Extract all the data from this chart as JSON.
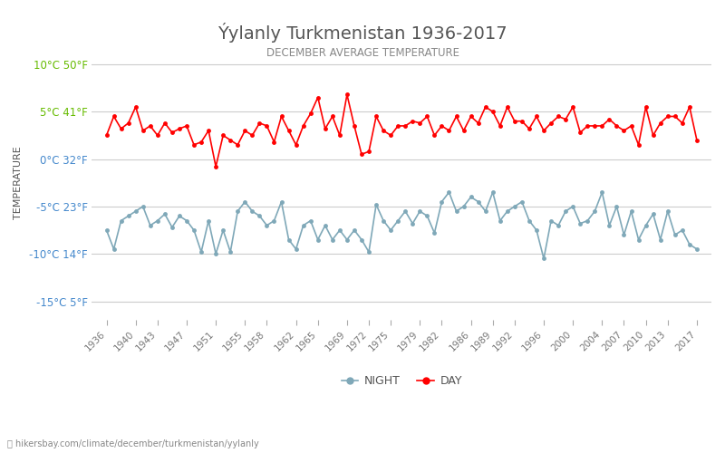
{
  "title": "Ýylanly Turkmenistan 1936-2017",
  "subtitle": "DECEMBER AVERAGE TEMPERATURE",
  "ylabel": "TEMPERATURE",
  "xlabel_url": "hikersbay.com/climate/december/turkmenistan/yylanly",
  "ylim": [
    -17,
    12
  ],
  "yticks_c": [
    -15,
    -10,
    -5,
    0,
    5,
    10
  ],
  "yticks_f": [
    5,
    14,
    23,
    32,
    41,
    50
  ],
  "years": [
    1936,
    1937,
    1938,
    1939,
    1940,
    1941,
    1942,
    1943,
    1944,
    1945,
    1946,
    1947,
    1948,
    1949,
    1950,
    1951,
    1952,
    1953,
    1954,
    1955,
    1956,
    1957,
    1958,
    1959,
    1960,
    1961,
    1962,
    1963,
    1964,
    1965,
    1966,
    1967,
    1968,
    1969,
    1970,
    1971,
    1972,
    1973,
    1974,
    1975,
    1976,
    1977,
    1978,
    1979,
    1980,
    1981,
    1982,
    1983,
    1984,
    1985,
    1986,
    1987,
    1988,
    1989,
    1990,
    1991,
    1992,
    1993,
    1994,
    1995,
    1996,
    1997,
    1998,
    1999,
    2000,
    2001,
    2002,
    2003,
    2004,
    2005,
    2006,
    2007,
    2008,
    2009,
    2010,
    2011,
    2012,
    2013,
    2014,
    2015,
    2016,
    2017
  ],
  "day_temps": [
    2.5,
    4.5,
    3.2,
    3.8,
    5.5,
    3.0,
    3.5,
    2.5,
    3.8,
    2.8,
    3.2,
    3.5,
    1.5,
    1.8,
    3.0,
    -0.8,
    2.5,
    2.0,
    1.5,
    3.0,
    2.5,
    3.8,
    3.5,
    1.8,
    4.5,
    3.0,
    1.5,
    3.5,
    4.8,
    6.5,
    3.2,
    4.5,
    2.5,
    6.8,
    3.5,
    0.5,
    0.8,
    4.5,
    3.0,
    2.5,
    3.5,
    3.5,
    4.0,
    3.8,
    4.5,
    2.5,
    3.5,
    3.0,
    4.5,
    3.0,
    4.5,
    3.8,
    5.5,
    5.0,
    3.5,
    5.5,
    4.0,
    4.0,
    3.2,
    4.5,
    3.0,
    3.8,
    4.5,
    4.2,
    5.5,
    2.8,
    3.5,
    3.5,
    3.5,
    4.2,
    3.5,
    3.0,
    3.5,
    1.5,
    5.5,
    2.5,
    3.8,
    4.5,
    4.5,
    3.8,
    5.5,
    2.0
  ],
  "night_temps": [
    -7.5,
    -9.5,
    -6.5,
    -6.0,
    -5.5,
    -5.0,
    -7.0,
    -6.5,
    -5.8,
    -7.2,
    -6.0,
    -6.5,
    -7.5,
    -9.8,
    -6.5,
    -10.0,
    -7.5,
    -9.8,
    -5.5,
    -4.5,
    -5.5,
    -6.0,
    -7.0,
    -6.5,
    -4.5,
    -8.5,
    -9.5,
    -7.0,
    -6.5,
    -8.5,
    -7.0,
    -8.5,
    -7.5,
    -8.5,
    -7.5,
    -8.5,
    -9.8,
    -4.8,
    -6.5,
    -7.5,
    -6.5,
    -5.5,
    -6.8,
    -5.5,
    -6.0,
    -7.8,
    -4.5,
    -3.5,
    -5.5,
    -5.0,
    -4.0,
    -4.5,
    -5.5,
    -3.5,
    -6.5,
    -5.5,
    -5.0,
    -4.5,
    -6.5,
    -7.5,
    -10.5,
    -6.5,
    -7.0,
    -5.5,
    -5.0,
    -6.8,
    -6.5,
    -5.5,
    -3.5,
    -7.0,
    -5.0,
    -8.0,
    -5.5,
    -8.5,
    -7.0,
    -5.8,
    -8.5,
    -5.5,
    -8.0,
    -7.5,
    -9.0,
    -9.5
  ],
  "day_color": "#FF0000",
  "night_color": "#7FA8B8",
  "title_color": "#555555",
  "subtitle_color": "#888888",
  "ylabel_color": "#555555",
  "tick_label_color_green": "#66BB00",
  "tick_label_color_blue": "#4488CC",
  "grid_color": "#CCCCCC",
  "bg_color": "#FFFFFF",
  "xtick_labels": [
    "1936",
    "1940",
    "1943",
    "1947",
    "1951",
    "1955",
    "1958",
    "1962",
    "1965",
    "1969",
    "1972",
    "1975",
    "1979",
    "1982",
    "1986",
    "1989",
    "1992",
    "1996",
    "2000",
    "2004",
    "2007",
    "2010",
    "2013",
    "2017"
  ],
  "xtick_years": [
    1936,
    1940,
    1943,
    1947,
    1951,
    1955,
    1958,
    1962,
    1965,
    1969,
    1972,
    1975,
    1979,
    1982,
    1986,
    1989,
    1992,
    1996,
    2000,
    2004,
    2007,
    2010,
    2013,
    2017
  ]
}
